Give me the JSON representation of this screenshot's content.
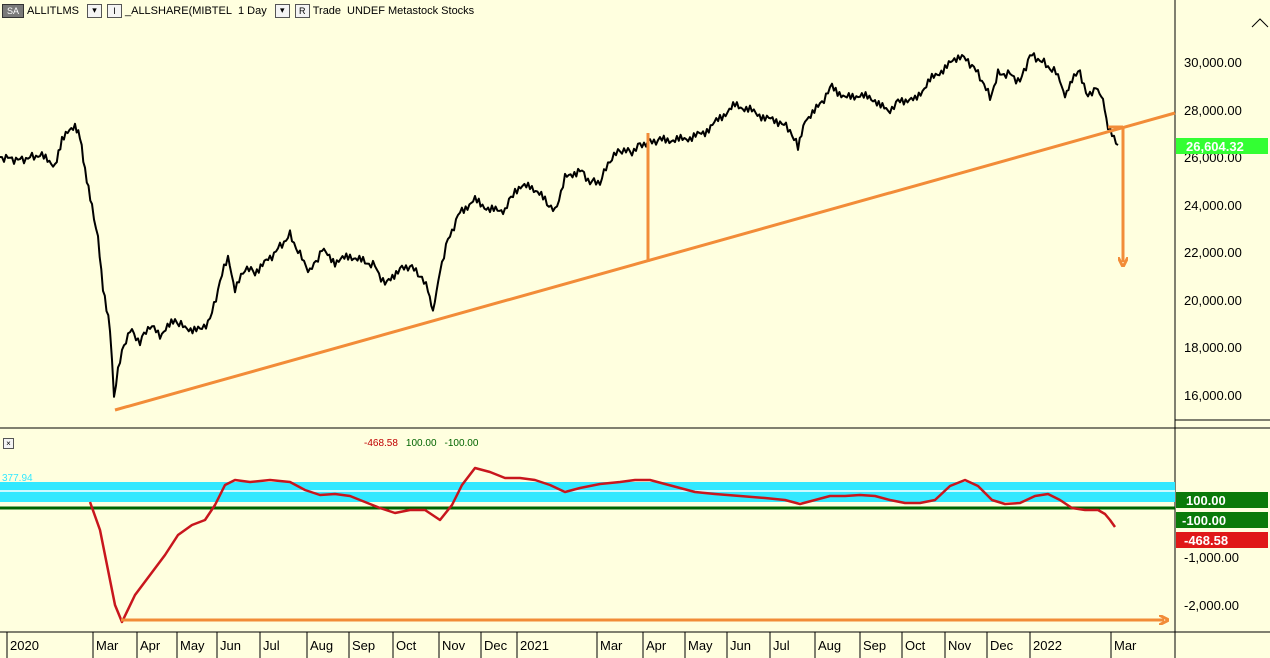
{
  "header": {
    "source_menu": "SA",
    "symbol": "ALLITLMS",
    "indicator_menu": "I",
    "comparison_symbol": "_ALLSHARE(MIBTEL",
    "interval": "1 Day",
    "mode_menu": "R",
    "mode_label": "Trade",
    "tags": "UNDEF Metastock Stocks"
  },
  "price_panel": {
    "y_ticks": [
      "30,000.00",
      "28,000.00",
      "26,000.00",
      "24,000.00",
      "22,000.00",
      "20,000.00",
      "18,000.00",
      "16,000.00"
    ],
    "last_value": "26,604.32",
    "last_value_color": "#33ff33",
    "line_color": "#000000",
    "trendline_color": "#f28c38"
  },
  "indicator_panel": {
    "header_values": [
      "-468.58",
      "100.00",
      "-100.00"
    ],
    "header_value_colors": [
      "#c00000",
      "#006400",
      "#006400"
    ],
    "left_label": "377.94",
    "y_ticks": [
      "-1,000.00",
      "-2,000.00"
    ],
    "badges": [
      {
        "text": "100.00",
        "bg": "#0a7a0a",
        "fg": "#ffffff"
      },
      {
        "text": "-100.00",
        "bg": "#0a7a0a",
        "fg": "#ffffff"
      },
      {
        "text": "-468.58",
        "bg": "#e01818",
        "fg": "#ffffff"
      }
    ],
    "band_color": "#33e8ff",
    "zero_line_color": "#006400",
    "series_color": "#c8161d"
  },
  "x_axis": {
    "labels": [
      "2020",
      "Mar",
      "Apr",
      "May",
      "Jun",
      "Jul",
      "Aug",
      "Sep",
      "Oct",
      "Nov",
      "Dec",
      "2021",
      "Mar",
      "Apr",
      "May",
      "Jun",
      "Jul",
      "Aug",
      "Sep",
      "Oct",
      "Nov",
      "Dec",
      "2022",
      "Mar"
    ]
  }
}
